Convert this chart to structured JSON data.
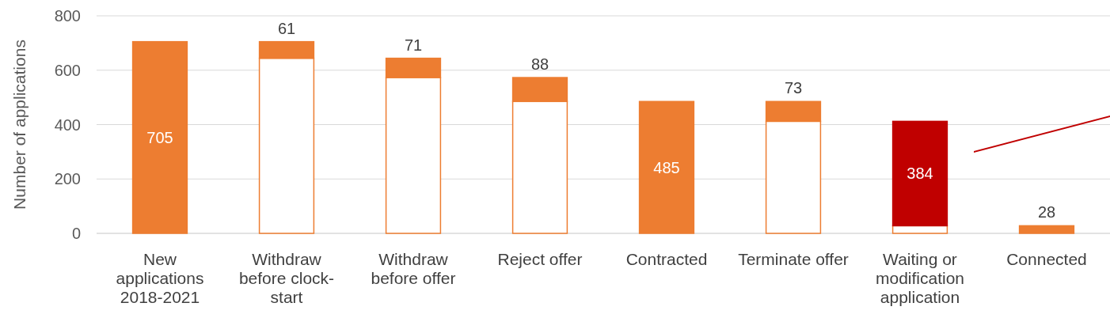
{
  "chart_data": {
    "type": "bar",
    "stacked": true,
    "ylabel": "Number of applications",
    "categories": [
      "New applications 2018-2021",
      "Withdraw before clock-start",
      "Withdraw before offer",
      "Reject offer",
      "Contracted",
      "Terminate offer",
      "Waiting or modification application",
      "Connected"
    ],
    "series": [
      {
        "color": "#ffffff",
        "values": [
          null,
          644,
          573,
          485,
          null,
          412,
          28,
          null
        ]
      },
      {
        "color": "#ed7d31",
        "colors": [
          "#ed7d31",
          "#ed7d31",
          "#ed7d31",
          "#ed7d31",
          "#ed7d31",
          "#ed7d31",
          "#c00000",
          "#ed7d31"
        ],
        "values": [
          705,
          61,
          71,
          88,
          485,
          73,
          384,
          28
        ],
        "value_labels": [
          "705",
          "61",
          "71",
          "88",
          "485",
          "73",
          "384",
          "28"
        ]
      }
    ],
    "ylim": [
      0,
      800
    ],
    "yticks": [
      0,
      200,
      400,
      600,
      800
    ],
    "grid": "y"
  }
}
